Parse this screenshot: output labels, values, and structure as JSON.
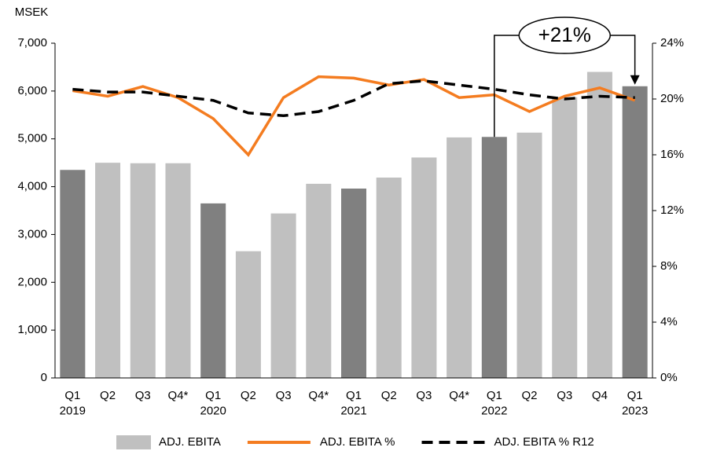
{
  "chart_data": {
    "type": "combo",
    "y_label": "MSEK",
    "annotation": "+21%",
    "categories": [
      "Q1\n2019",
      "Q2",
      "Q3",
      "Q4*",
      "Q1\n2020",
      "Q2",
      "Q3",
      "Q4*",
      "Q1\n2021",
      "Q2",
      "Q3",
      "Q4*",
      "Q1\n2022",
      "Q2",
      "Q3",
      "Q4",
      "Q1\n2023"
    ],
    "series": [
      {
        "name": "ADJ. EBITA",
        "type": "bar",
        "color": "#c0c0c0",
        "colors": [
          "#808080",
          "#c0c0c0",
          "#c0c0c0",
          "#c0c0c0",
          "#808080",
          "#c0c0c0",
          "#c0c0c0",
          "#c0c0c0",
          "#808080",
          "#c0c0c0",
          "#c0c0c0",
          "#c0c0c0",
          "#808080",
          "#c0c0c0",
          "#c0c0c0",
          "#c0c0c0",
          "#808080"
        ],
        "values": [
          4350,
          4500,
          4490,
          4490,
          3650,
          2650,
          3440,
          4060,
          3960,
          4190,
          4610,
          5030,
          5040,
          5130,
          5870,
          6400,
          6100
        ]
      },
      {
        "name": "ADJ. EBITA %",
        "type": "line",
        "axis": "y2",
        "color": "#f47c20",
        "dashed": false,
        "values": [
          20.6,
          20.2,
          20.9,
          20.1,
          18.6,
          16.0,
          20.1,
          21.6,
          21.5,
          21.0,
          21.4,
          20.1,
          20.3,
          19.1,
          20.2,
          20.8,
          19.9
        ]
      },
      {
        "name": "ADJ. EBITA % R12",
        "type": "line",
        "axis": "y2",
        "color": "#000000",
        "dashed": true,
        "values": [
          20.7,
          20.5,
          20.5,
          20.2,
          19.9,
          19.0,
          18.8,
          19.1,
          19.9,
          21.1,
          21.3,
          21.0,
          20.7,
          20.3,
          20.0,
          20.2,
          20.1
        ]
      }
    ],
    "ylim": [
      0,
      7000
    ],
    "yticks": [
      0,
      {
        "value": 1000,
        "label": "1,000"
      },
      {
        "value": 2000,
        "label": "2,000"
      },
      {
        "value": 3000,
        "label": "3,000"
      },
      {
        "value": 4000,
        "label": "4,000"
      },
      {
        "value": 5000,
        "label": "5,000"
      },
      {
        "value": 6000,
        "label": "6,000"
      },
      {
        "value": 7000,
        "label": "7,000"
      }
    ],
    "y2lim": [
      0,
      24
    ],
    "y2ticks": [
      {
        "value": 0,
        "label": "0%"
      },
      {
        "value": 4,
        "label": "4%"
      },
      {
        "value": 8,
        "label": "8%"
      },
      {
        "value": 12,
        "label": "12%"
      },
      {
        "value": 16,
        "label": "16%"
      },
      {
        "value": 20,
        "label": "20%"
      },
      {
        "value": 24,
        "label": "24%"
      }
    ]
  }
}
